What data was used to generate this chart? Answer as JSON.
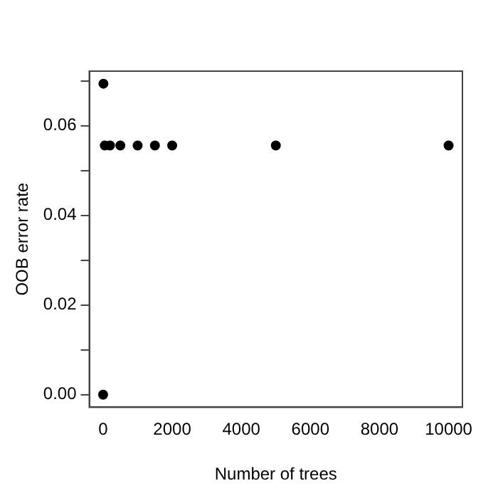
{
  "chart_data": {
    "type": "scatter",
    "xlabel": "Number of trees",
    "ylabel": "OOB error rate",
    "x": [
      1,
      10,
      50,
      200,
      500,
      1000,
      1500,
      2000,
      5000,
      10000
    ],
    "values": [
      0,
      0.0694,
      0.0556,
      0.0556,
      0.0556,
      0.0556,
      0.0556,
      0.0556,
      0.0556,
      0.0556
    ],
    "color": "#000000",
    "marker": "circle",
    "grid": false,
    "legend": false,
    "xlim": [
      -399,
      10400
    ],
    "xticks": [
      0,
      2000,
      4000,
      6000,
      8000,
      10000
    ],
    "ylim": [
      -0.0028,
      0.0722
    ],
    "yticks": [
      {
        "value": 0,
        "label": "0.00"
      },
      {
        "value": 0.01,
        "label": null
      },
      {
        "value": 0.02,
        "label": "0.02"
      },
      {
        "value": 0.03,
        "label": null
      },
      {
        "value": 0.04,
        "label": "0.04"
      },
      {
        "value": 0.05,
        "label": null
      },
      {
        "value": 0.06,
        "label": "0.06"
      },
      {
        "value": 0.07,
        "label": null
      }
    ]
  }
}
